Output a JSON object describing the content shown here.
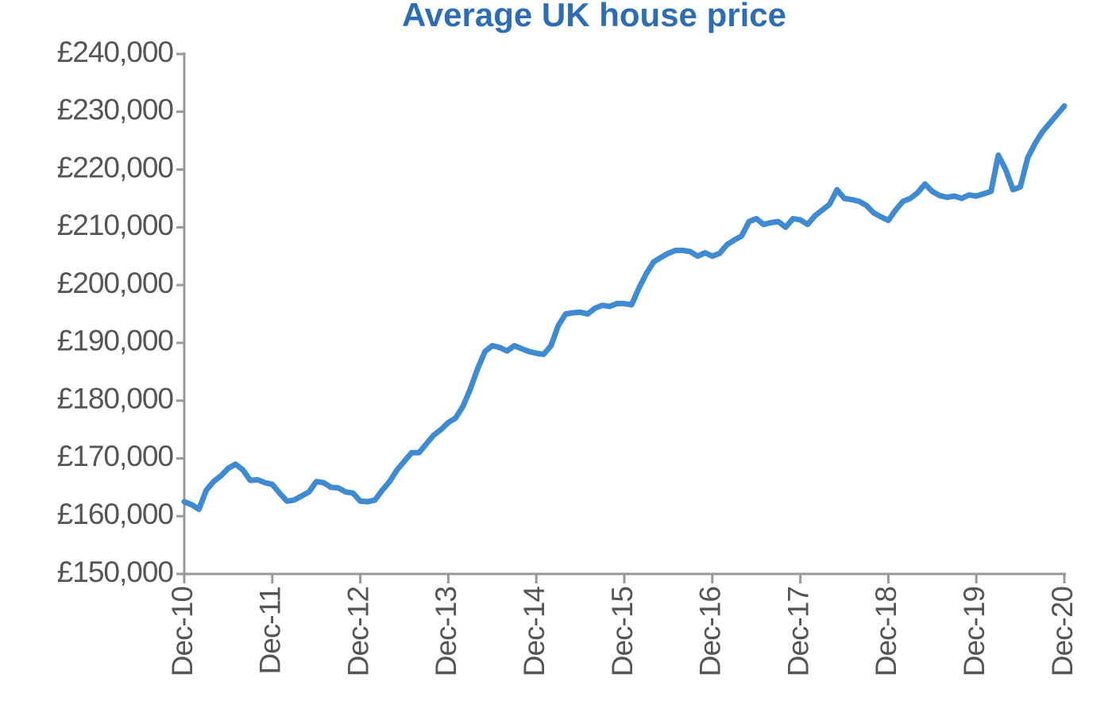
{
  "chart_data": {
    "type": "line",
    "title": "Average UK house price",
    "categories": [
      "Dec-10",
      null,
      null,
      null,
      null,
      null,
      null,
      null,
      null,
      null,
      null,
      null,
      "Dec-11",
      null,
      null,
      null,
      null,
      null,
      null,
      null,
      null,
      null,
      null,
      null,
      "Dec-12",
      null,
      null,
      null,
      null,
      null,
      null,
      null,
      null,
      null,
      null,
      null,
      "Dec-13",
      null,
      null,
      null,
      null,
      null,
      null,
      null,
      null,
      null,
      null,
      null,
      "Dec-14",
      null,
      null,
      null,
      null,
      null,
      null,
      null,
      null,
      null,
      null,
      null,
      "Dec-15",
      null,
      null,
      null,
      null,
      null,
      null,
      null,
      null,
      null,
      null,
      null,
      "Dec-16",
      null,
      null,
      null,
      null,
      null,
      null,
      null,
      null,
      null,
      null,
      null,
      "Dec-17",
      null,
      null,
      null,
      null,
      null,
      null,
      null,
      null,
      null,
      null,
      null,
      "Dec-18",
      null,
      null,
      null,
      null,
      null,
      null,
      null,
      null,
      null,
      null,
      null,
      "Dec-19",
      null,
      null,
      null,
      null,
      null,
      null,
      null,
      null,
      null,
      null,
      null,
      "Dec-20"
    ],
    "values": [
      162500,
      162000,
      161200,
      164500,
      166000,
      167000,
      168300,
      169000,
      168000,
      166200,
      166300,
      165800,
      165500,
      164000,
      162600,
      162800,
      163500,
      164200,
      166000,
      165800,
      165000,
      164900,
      164200,
      164000,
      162600,
      162500,
      162800,
      164500,
      166000,
      168000,
      169500,
      171000,
      171000,
      172500,
      174000,
      175000,
      176200,
      177000,
      179000,
      182000,
      185500,
      188500,
      189500,
      189200,
      188600,
      189500,
      189000,
      188500,
      188200,
      188000,
      189500,
      193000,
      195000,
      195200,
      195300,
      195000,
      196000,
      196500,
      196300,
      196800,
      196800,
      196600,
      199500,
      202000,
      204000,
      204800,
      205500,
      206000,
      206000,
      205800,
      205000,
      205600,
      205000,
      205500,
      207000,
      207800,
      208500,
      211000,
      211500,
      210500,
      210800,
      211000,
      210000,
      211500,
      211300,
      210500,
      212000,
      213000,
      214000,
      216500,
      215000,
      214800,
      214500,
      213800,
      212500,
      211800,
      211200,
      213000,
      214500,
      215000,
      216000,
      217500,
      216200,
      215500,
      215200,
      215400,
      215000,
      215600,
      215400,
      215800,
      216200,
      222500,
      220000,
      216500,
      217000,
      222000,
      224500,
      226500,
      228000,
      229500,
      231000
    ],
    "color": "#3f8ad0",
    "ylim": [
      150000,
      240000
    ],
    "yticks": [
      {
        "value": 150000,
        "label": "£150,000"
      },
      {
        "value": 160000,
        "label": "£160,000"
      },
      {
        "value": 170000,
        "label": "£170,000"
      },
      {
        "value": 180000,
        "label": "£180,000"
      },
      {
        "value": 190000,
        "label": "£190,000"
      },
      {
        "value": 200000,
        "label": "£200,000"
      },
      {
        "value": 210000,
        "label": "£210,000"
      },
      {
        "value": 220000,
        "label": "£220,000"
      },
      {
        "value": 230000,
        "label": "£230,000"
      },
      {
        "value": 240000,
        "label": "£240,000"
      }
    ],
    "grid": false
  }
}
